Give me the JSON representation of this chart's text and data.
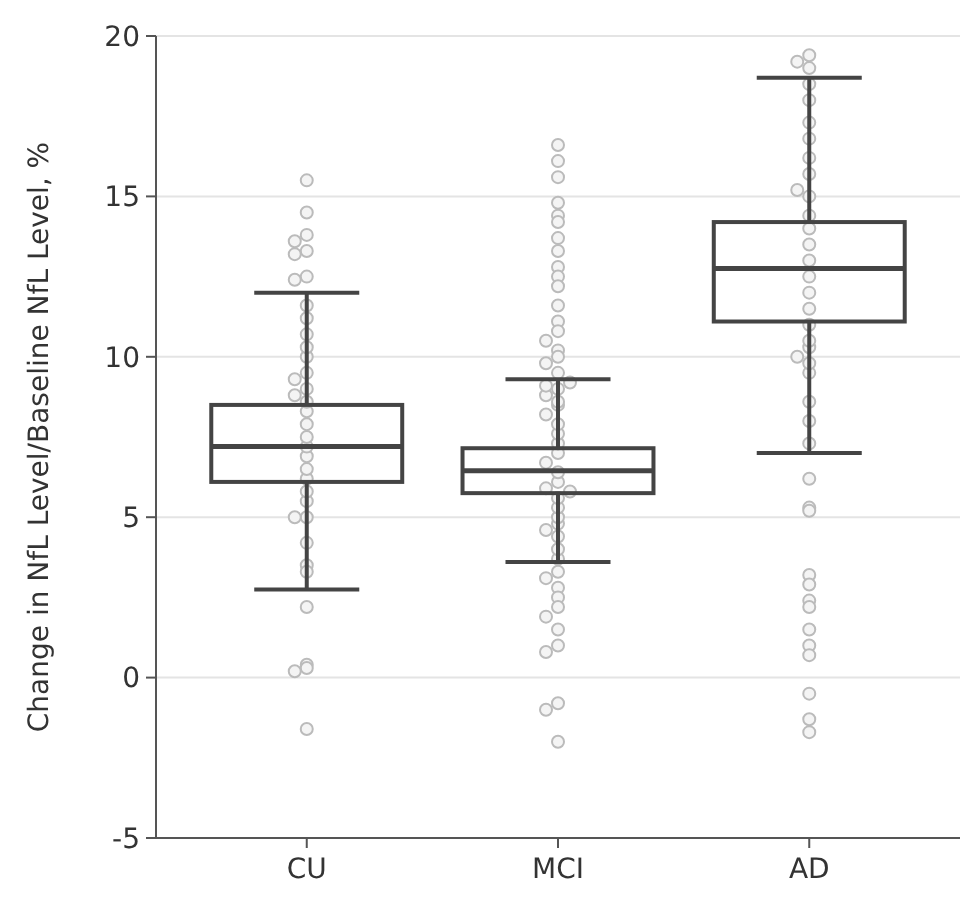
{
  "chart_data": {
    "type": "box",
    "ylabel": "Change in NfL Level/Baseline NfL Level, %",
    "categories": [
      "CU",
      "MCI",
      "AD"
    ],
    "ylim": [
      -5,
      20
    ],
    "yticks": [
      -5,
      0,
      5,
      10,
      15,
      20
    ],
    "grid": "y",
    "color": "#444444",
    "boxes": [
      {
        "low": 2.75,
        "q1": 6.1,
        "median": 7.2,
        "q3": 8.5,
        "high": 12.0,
        "outliers": [
          15.5,
          14.5,
          13.8,
          13.6,
          13.3,
          13.2,
          12.5,
          12.4,
          2.2,
          0.4,
          0.3,
          0.2,
          -1.6
        ]
      },
      {
        "low": 3.6,
        "q1": 5.75,
        "median": 6.45,
        "q3": 7.15,
        "high": 9.3,
        "outliers": [
          16.6,
          16.1,
          15.6,
          14.8,
          14.4,
          14.2,
          13.7,
          13.3,
          12.8,
          12.5,
          12.2,
          11.6,
          11.1,
          10.8,
          10.5,
          10.2,
          10.0,
          9.8,
          9.5,
          3.3,
          3.1,
          2.8,
          2.5,
          2.2,
          1.9,
          1.5,
          1.0,
          0.8,
          -0.8,
          -1.0,
          -2.0
        ]
      },
      {
        "low": 7.0,
        "q1": 11.1,
        "median": 12.75,
        "q3": 14.2,
        "high": 18.7,
        "outliers": [
          19.4,
          19.2,
          19.0,
          6.2,
          5.3,
          5.2,
          3.2,
          2.9,
          2.4,
          2.2,
          1.5,
          1.0,
          0.7,
          -0.5,
          -1.3,
          -1.7
        ]
      }
    ],
    "series": [
      {
        "type": "scatter",
        "color": "#bbbbbb",
        "x": [
          "CU",
          "CU",
          "CU",
          "CU",
          "CU",
          "CU",
          "CU",
          "CU",
          "CU",
          "CU",
          "CU",
          "CU",
          "CU",
          "CU",
          "CU",
          "CU",
          "CU",
          "CU",
          "CU",
          "CU",
          "CU",
          "CU",
          "CU",
          "CU",
          "MCI",
          "MCI",
          "MCI",
          "MCI",
          "MCI",
          "MCI",
          "MCI",
          "MCI",
          "MCI",
          "MCI",
          "MCI",
          "MCI",
          "MCI",
          "MCI",
          "MCI",
          "MCI",
          "MCI",
          "MCI",
          "MCI",
          "MCI",
          "MCI",
          "MCI",
          "MCI",
          "MCI",
          "AD",
          "AD",
          "AD",
          "AD",
          "AD",
          "AD",
          "AD",
          "AD",
          "AD",
          "AD",
          "AD",
          "AD",
          "AD",
          "AD",
          "AD",
          "AD",
          "AD",
          "AD",
          "AD",
          "AD",
          "AD",
          "AD",
          "AD",
          "AD"
        ],
        "values": [
          3.5,
          3.3,
          4.2,
          5.0,
          5.0,
          5.5,
          5.8,
          6.2,
          6.5,
          6.9,
          7.2,
          7.5,
          7.9,
          8.3,
          8.6,
          8.8,
          9.0,
          9.3,
          9.5,
          10.0,
          10.3,
          10.7,
          11.2,
          11.6,
          3.7,
          4.0,
          4.4,
          4.8,
          5.0,
          5.3,
          5.6,
          5.9,
          6.1,
          6.4,
          6.7,
          7.0,
          7.3,
          7.6,
          7.9,
          8.2,
          8.5,
          8.6,
          8.8,
          9.0,
          9.1,
          9.2,
          4.6,
          5.8,
          7.3,
          8.0,
          8.6,
          9.5,
          9.8,
          10.0,
          10.3,
          10.5,
          11.0,
          11.5,
          12.0,
          12.5,
          13.0,
          13.5,
          14.0,
          14.4,
          15.0,
          15.2,
          15.7,
          16.2,
          16.8,
          17.3,
          18.0,
          18.5
        ]
      }
    ]
  }
}
